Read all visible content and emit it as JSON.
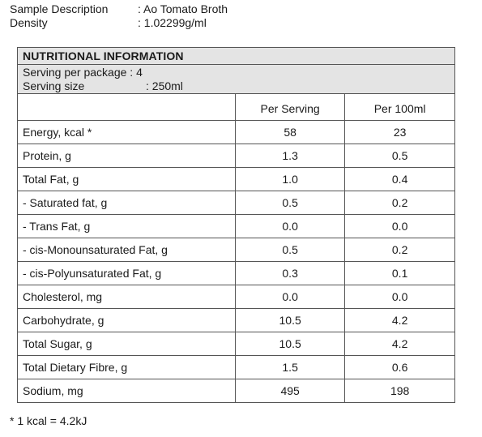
{
  "sample": {
    "description_label": "Sample Description",
    "description_value": ": Ao Tomato Broth",
    "density_label": "Density",
    "density_value": ": 1.02299g/ml"
  },
  "nutrition": {
    "title": "NUTRITIONAL INFORMATION",
    "servings_per_package": "Serving per package : 4",
    "serving_size_label": "Serving size",
    "serving_size_value": ": 250ml",
    "col_per_serving": "Per Serving",
    "col_per_100ml": "Per 100ml",
    "rows": [
      {
        "name": "Energy, kcal *",
        "per_serving": "58",
        "per_100ml": "23"
      },
      {
        "name": "Protein, g",
        "per_serving": "1.3",
        "per_100ml": "0.5"
      },
      {
        "name": "Total Fat, g",
        "per_serving": "1.0",
        "per_100ml": "0.4"
      },
      {
        "name": "- Saturated fat, g",
        "per_serving": "0.5",
        "per_100ml": "0.2"
      },
      {
        "name": "- Trans Fat, g",
        "per_serving": "0.0",
        "per_100ml": "0.0"
      },
      {
        "name": "- cis-Monounsaturated Fat, g",
        "per_serving": "0.5",
        "per_100ml": "0.2"
      },
      {
        "name": "- cis-Polyunsaturated Fat, g",
        "per_serving": "0.3",
        "per_100ml": "0.1"
      },
      {
        "name": "Cholesterol, mg",
        "per_serving": "0.0",
        "per_100ml": "0.0"
      },
      {
        "name": "Carbohydrate, g",
        "per_serving": "10.5",
        "per_100ml": "4.2"
      },
      {
        "name": "Total Sugar, g",
        "per_serving": "10.5",
        "per_100ml": "4.2"
      },
      {
        "name": "Total Dietary Fibre, g",
        "per_serving": "1.5",
        "per_100ml": "0.6"
      },
      {
        "name": "Sodium, mg",
        "per_serving": "495",
        "per_100ml": "198"
      }
    ]
  },
  "footnote": "* 1 kcal = 4.2kJ"
}
